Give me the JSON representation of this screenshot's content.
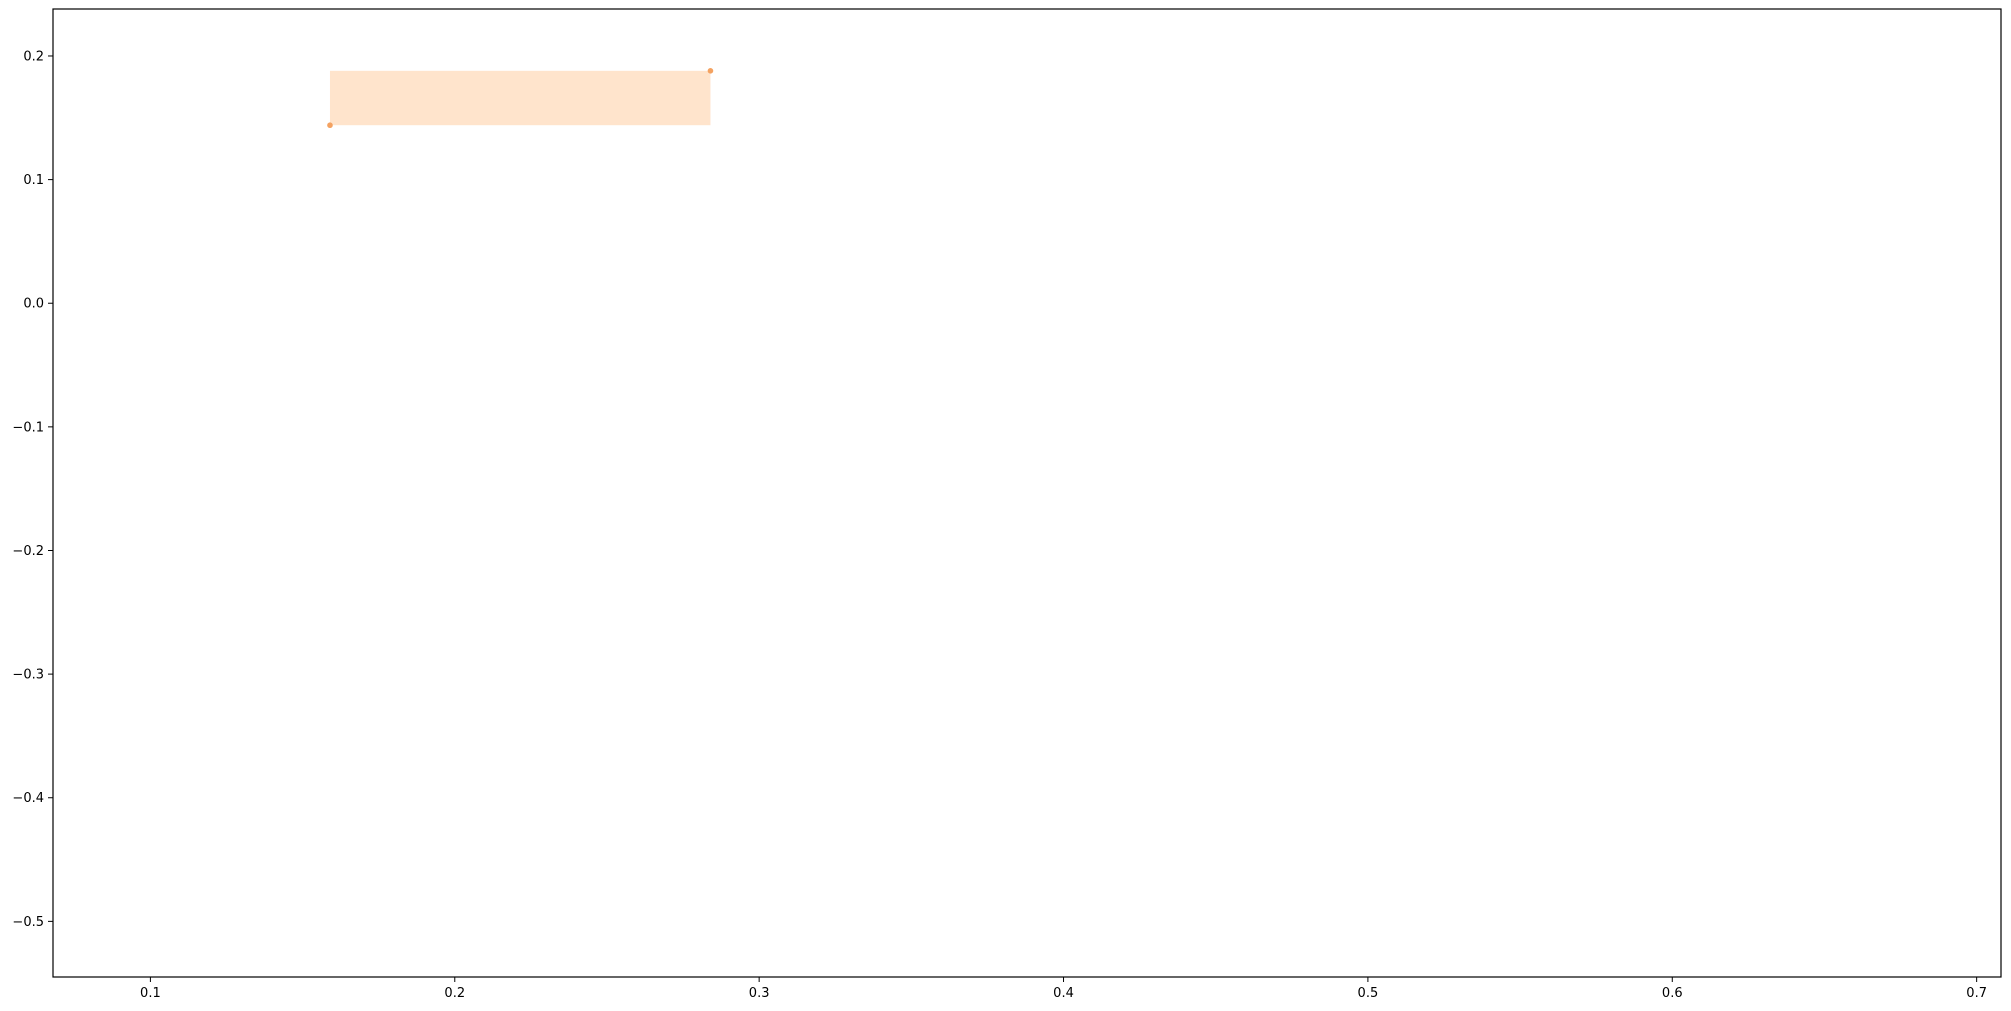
{
  "chart_data": {
    "type": "scatter",
    "title": "",
    "xlabel": "",
    "ylabel": "",
    "xlim": [
      0.068,
      0.708
    ],
    "ylim": [
      -0.545,
      0.238
    ],
    "grid": false,
    "x_ticks": [
      0.1,
      0.2,
      0.3,
      0.4,
      0.5,
      0.6,
      0.7
    ],
    "x_tick_labels": [
      "0.1",
      "0.2",
      "0.3",
      "0.4",
      "0.5",
      "0.6",
      "0.7"
    ],
    "y_ticks": [
      0.2,
      0.1,
      0.0,
      -0.1,
      -0.2,
      -0.3,
      -0.4,
      -0.5
    ],
    "y_tick_labels": [
      "0.2",
      "0.1",
      "0.0",
      "−0.1",
      "−0.2",
      "−0.3",
      "−0.4",
      "−0.5"
    ],
    "rectangles": [
      {
        "x0": 0.159,
        "x1": 0.284,
        "y0": 0.144,
        "y1": 0.188,
        "color": "#ffe4cc"
      }
    ],
    "points": [
      {
        "x": 0.159,
        "y": 0.144,
        "color": "#f4a261"
      },
      {
        "x": 0.284,
        "y": 0.188,
        "color": "#f4a261"
      }
    ]
  }
}
